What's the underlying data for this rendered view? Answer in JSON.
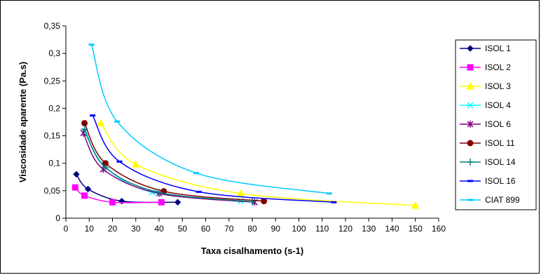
{
  "chart_data": {
    "type": "line",
    "title": "",
    "xlabel": "Taxa cisalhamento (s-1)",
    "ylabel": "Viscosidade aparente (Pa.s)",
    "xlim": [
      0,
      160
    ],
    "ylim": [
      0,
      0.35
    ],
    "xticks": [
      "0",
      "10",
      "20",
      "30",
      "40",
      "50",
      "60",
      "70",
      "80",
      "90",
      "100",
      "110",
      "120",
      "130",
      "140",
      "150",
      "160"
    ],
    "yticks": [
      "0",
      "0,05",
      "0,1",
      "0,15",
      "0,2",
      "0,25",
      "0,3",
      "0,35"
    ],
    "grid": false,
    "legend_position": "right",
    "series": [
      {
        "name": "ISOL 1",
        "color": "#000080",
        "marker": "diamond",
        "x": [
          4.5,
          9.5,
          24,
          48
        ],
        "y": [
          0.08,
          0.053,
          0.031,
          0.029
        ]
      },
      {
        "name": "ISOL 2",
        "color": "#FF00FF",
        "marker": "square",
        "x": [
          4,
          8,
          20,
          41
        ],
        "y": [
          0.056,
          0.041,
          0.029,
          0.029
        ]
      },
      {
        "name": "ISOL 3",
        "color": "#FFFF00",
        "marker": "triangle",
        "x": [
          15,
          30,
          75,
          150
        ],
        "y": [
          0.173,
          0.098,
          0.045,
          0.023
        ]
      },
      {
        "name": "ISOL 4",
        "color": "#00FFFF",
        "marker": "x",
        "x": [
          8,
          17,
          37,
          75
        ],
        "y": [
          0.158,
          0.093,
          0.047,
          0.031
        ]
      },
      {
        "name": "ISOL 6",
        "color": "#800080",
        "marker": "star",
        "x": [
          7.5,
          16,
          40,
          81
        ],
        "y": [
          0.155,
          0.089,
          0.045,
          0.029
        ]
      },
      {
        "name": "ISOL 11",
        "color": "#800000",
        "marker": "circle",
        "x": [
          8,
          17,
          42,
          85
        ],
        "y": [
          0.173,
          0.1,
          0.049,
          0.031
        ]
      },
      {
        "name": "ISOL 14",
        "color": "#008080",
        "marker": "plus",
        "x": [
          8,
          17,
          40,
          80
        ],
        "y": [
          0.162,
          0.092,
          0.047,
          0.03
        ]
      },
      {
        "name": "ISOL 16",
        "color": "#0000FF",
        "marker": "dash",
        "x": [
          11.5,
          23,
          57,
          115
        ],
        "y": [
          0.187,
          0.103,
          0.048,
          0.029
        ]
      },
      {
        "name": "CIAT 899",
        "color": "#00CCFF",
        "marker": "dash",
        "x": [
          11,
          22,
          56,
          113
        ],
        "y": [
          0.316,
          0.176,
          0.082,
          0.045
        ]
      }
    ]
  }
}
